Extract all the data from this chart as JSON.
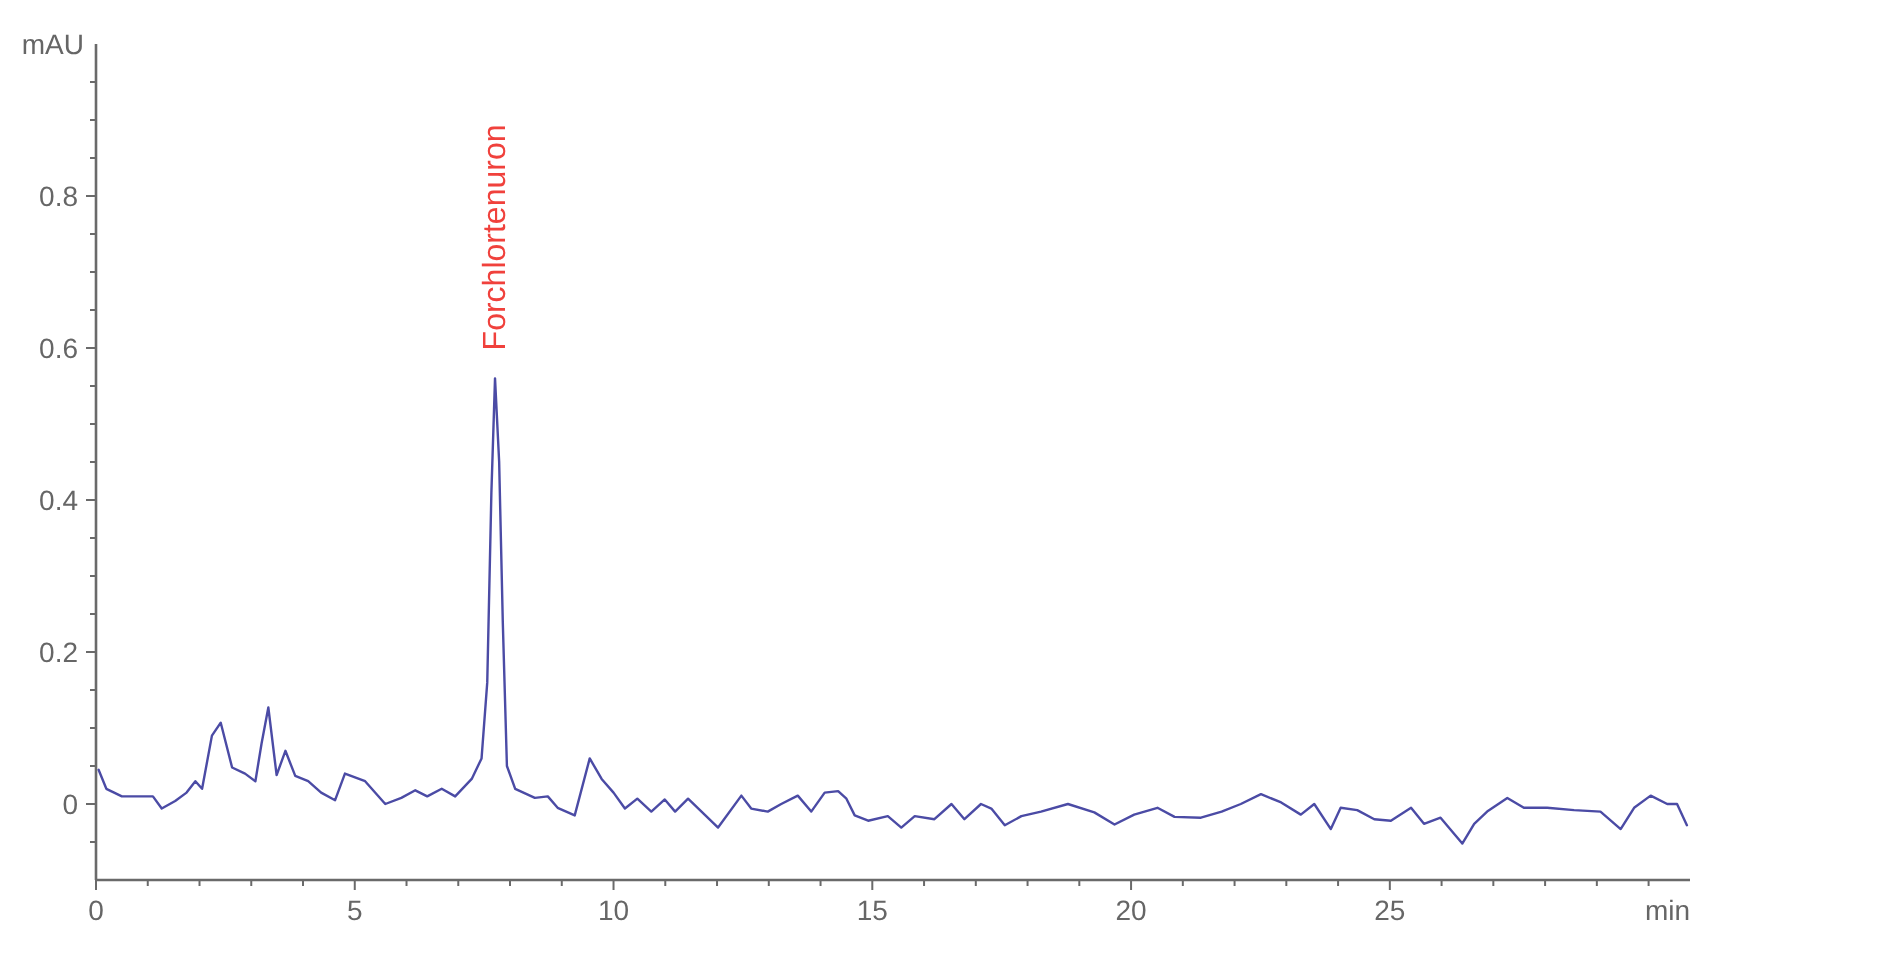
{
  "chart_data": {
    "type": "line",
    "xlabel": "min",
    "ylabel": "mAU",
    "xlim": [
      0,
      30.8
    ],
    "ylim": [
      -0.1,
      1.0
    ],
    "xticks": [
      0,
      {
        "value": 1,
        "label": null
      },
      {
        "value": 2,
        "label": null
      },
      {
        "value": 3,
        "label": null
      },
      {
        "value": 4,
        "label": null
      },
      5,
      {
        "value": 6,
        "label": null
      },
      {
        "value": 7,
        "label": null
      },
      {
        "value": 8,
        "label": null
      },
      {
        "value": 9,
        "label": null
      },
      10,
      {
        "value": 11,
        "label": null
      },
      {
        "value": 12,
        "label": null
      },
      {
        "value": 13,
        "label": null
      },
      {
        "value": 14,
        "label": null
      },
      15,
      {
        "value": 16,
        "label": null
      },
      {
        "value": 17,
        "label": null
      },
      {
        "value": 18,
        "label": null
      },
      {
        "value": 19,
        "label": null
      },
      20,
      {
        "value": 21,
        "label": null
      },
      {
        "value": 22,
        "label": null
      },
      {
        "value": 23,
        "label": null
      },
      {
        "value": 24,
        "label": null
      },
      25,
      {
        "value": 26,
        "label": null
      },
      {
        "value": 27,
        "label": null
      },
      {
        "value": 28,
        "label": null
      },
      {
        "value": 29,
        "label": null
      },
      {
        "value": 30,
        "label": null
      }
    ],
    "yticks": [
      {
        "value": -0.05,
        "label": null
      },
      0,
      {
        "value": 0.05,
        "label": null
      },
      {
        "value": 0.1,
        "label": null
      },
      {
        "value": 0.15,
        "label": null
      },
      0.2,
      {
        "value": 0.25,
        "label": null
      },
      {
        "value": 0.3,
        "label": null
      },
      {
        "value": 0.35,
        "label": null
      },
      0.4,
      {
        "value": 0.45,
        "label": null
      },
      {
        "value": 0.5,
        "label": null
      },
      {
        "value": 0.55,
        "label": null
      },
      0.6,
      {
        "value": 0.65,
        "label": null
      },
      {
        "value": 0.7,
        "label": null
      },
      {
        "value": 0.75,
        "label": null
      },
      0.8,
      {
        "value": 0.85,
        "label": null
      },
      {
        "value": 0.9,
        "label": null
      },
      {
        "value": 0.95,
        "label": null
      }
    ],
    "annotations": [
      {
        "text": "Forchlortenuron",
        "x": 7.71,
        "y": 0.56
      }
    ],
    "x": [
      0.05,
      0.2,
      0.5,
      0.89,
      1.1,
      1.27,
      1.53,
      1.75,
      1.92,
      2.05,
      2.24,
      2.41,
      2.63,
      2.88,
      3.08,
      3.2,
      3.33,
      3.49,
      3.66,
      3.85,
      4.1,
      4.35,
      4.62,
      4.81,
      5.2,
      5.59,
      5.9,
      6.17,
      6.4,
      6.68,
      6.94,
      7.26,
      7.45,
      7.56,
      7.64,
      7.71,
      7.79,
      7.86,
      7.94,
      8.1,
      8.48,
      8.73,
      8.92,
      9.25,
      9.54,
      9.77,
      10.0,
      10.22,
      10.46,
      10.73,
      10.99,
      11.19,
      11.44,
      11.7,
      12.02,
      12.47,
      12.66,
      12.98,
      13.24,
      13.56,
      13.82,
      14.08,
      14.34,
      14.5,
      14.66,
      14.92,
      15.3,
      15.56,
      15.82,
      16.2,
      16.53,
      16.78,
      17.1,
      17.3,
      17.56,
      17.88,
      18.26,
      18.78,
      19.29,
      19.68,
      20.06,
      20.51,
      20.84,
      21.35,
      21.75,
      22.12,
      22.51,
      22.9,
      23.28,
      23.54,
      23.86,
      24.05,
      24.37,
      24.7,
      25.02,
      25.41,
      25.66,
      25.98,
      26.4,
      26.63,
      26.88,
      27.27,
      27.59,
      28.04,
      28.56,
      29.07,
      29.46,
      29.72,
      30.04,
      30.36,
      30.55,
      30.74
    ],
    "series": [
      {
        "color": "#4b4ba5",
        "values": [
          0.045,
          0.02,
          0.01,
          0.01,
          0.01,
          -0.006,
          0.004,
          0.015,
          0.03,
          0.02,
          0.09,
          0.107,
          0.048,
          0.04,
          0.03,
          0.08,
          0.127,
          0.038,
          0.07,
          0.037,
          0.03,
          0.015,
          0.005,
          0.04,
          0.03,
          0.0,
          0.008,
          0.018,
          0.01,
          0.02,
          0.01,
          0.033,
          0.06,
          0.16,
          0.41,
          0.56,
          0.45,
          0.24,
          0.05,
          0.02,
          0.008,
          0.01,
          -0.005,
          -0.015,
          0.06,
          0.033,
          0.015,
          -0.006,
          0.007,
          -0.01,
          0.006,
          -0.01,
          0.007,
          -0.01,
          -0.031,
          0.011,
          -0.006,
          -0.01,
          0.0,
          0.011,
          -0.01,
          0.015,
          0.017,
          0.007,
          -0.015,
          -0.022,
          -0.016,
          -0.031,
          -0.016,
          -0.02,
          0.0,
          -0.02,
          0.0,
          -0.006,
          -0.028,
          -0.016,
          -0.01,
          0.0,
          -0.011,
          -0.027,
          -0.014,
          -0.005,
          -0.017,
          -0.018,
          -0.01,
          0.0,
          0.013,
          0.002,
          -0.014,
          0.0,
          -0.033,
          -0.005,
          -0.008,
          -0.02,
          -0.022,
          -0.005,
          -0.026,
          -0.018,
          -0.052,
          -0.026,
          -0.01,
          0.008,
          -0.005,
          -0.005,
          -0.008,
          -0.01,
          -0.033,
          -0.005,
          0.011,
          0.0,
          0.0,
          -0.028
        ]
      }
    ]
  }
}
